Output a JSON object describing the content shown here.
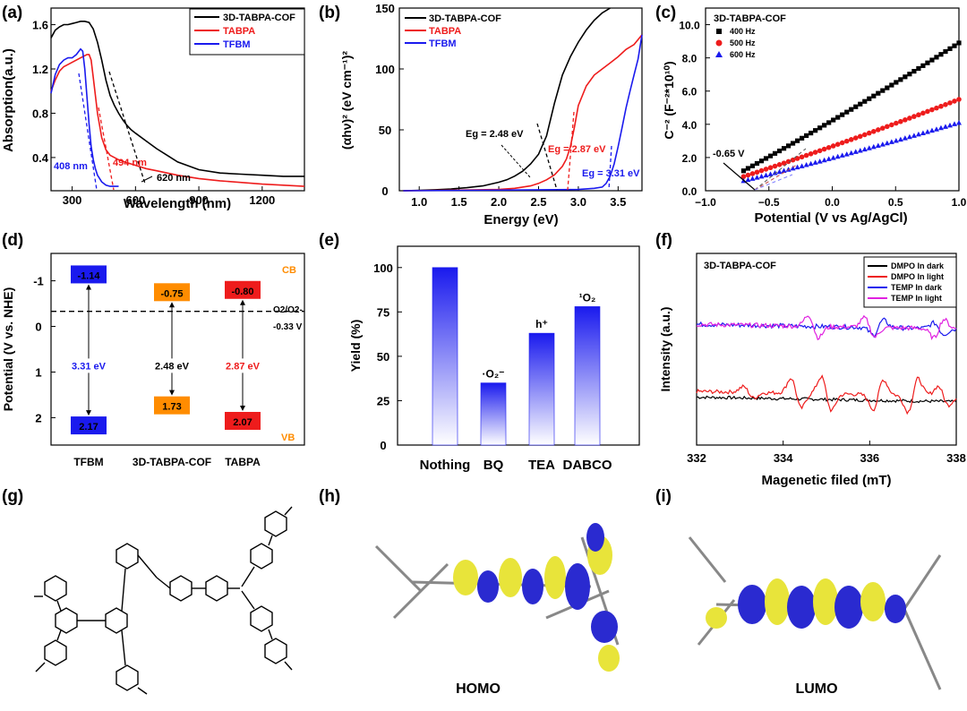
{
  "panel_labels": {
    "a": "(a)",
    "b": "(b)",
    "c": "(c)",
    "d": "(d)",
    "e": "(e)",
    "f": "(f)",
    "g": "(g)",
    "h": "(h)",
    "i": "(i)"
  },
  "colors": {
    "black": "#000000",
    "red": "#ee1c1c",
    "blue": "#1a1aee",
    "magenta": "#e020e0",
    "orange": "#ff8c00",
    "orbital_yellow": "#e8e43a",
    "orbital_blue": "#2a2ad0"
  },
  "chart_data": [
    {
      "id": "a",
      "type": "line",
      "xlabel": "Wavelength (nm)",
      "ylabel": "Absorption(a.u.)",
      "xlim": [
        200,
        1400
      ],
      "ylim": [
        0.1,
        1.75
      ],
      "xticks": [
        "300",
        "600",
        "900",
        "1200"
      ],
      "yticks": [
        "0.4",
        "0.8",
        "1.2",
        "1.6"
      ],
      "legend": "top-right",
      "series": [
        {
          "name": "3D-TABPA-COF",
          "color": "#000000",
          "x": [
            200,
            220,
            240,
            260,
            280,
            300,
            320,
            340,
            360,
            380,
            400,
            420,
            440,
            460,
            480,
            500,
            520,
            540,
            560,
            580,
            600,
            650,
            700,
            750,
            800,
            900,
            1000,
            1100,
            1200,
            1300,
            1400
          ],
          "y": [
            1.48,
            1.55,
            1.58,
            1.6,
            1.6,
            1.61,
            1.62,
            1.63,
            1.63,
            1.62,
            1.56,
            1.44,
            1.28,
            1.1,
            0.96,
            0.87,
            0.8,
            0.74,
            0.69,
            0.65,
            0.62,
            0.55,
            0.48,
            0.42,
            0.36,
            0.29,
            0.26,
            0.25,
            0.24,
            0.23,
            0.23
          ]
        },
        {
          "name": "TABPA",
          "color": "#ee1c1c",
          "x": [
            200,
            220,
            240,
            260,
            280,
            300,
            320,
            340,
            360,
            370,
            380,
            390,
            400,
            420,
            440,
            460,
            480,
            500,
            520,
            550,
            600,
            650,
            700,
            800,
            900,
            1000,
            1200,
            1400
          ],
          "y": [
            1.0,
            1.1,
            1.18,
            1.22,
            1.24,
            1.26,
            1.28,
            1.3,
            1.32,
            1.33,
            1.33,
            1.28,
            1.12,
            0.8,
            0.58,
            0.47,
            0.42,
            0.4,
            0.38,
            0.36,
            0.33,
            0.3,
            0.28,
            0.24,
            0.21,
            0.19,
            0.16,
            0.14
          ]
        },
        {
          "name": "TFBM",
          "color": "#1a1aee",
          "x": [
            200,
            220,
            240,
            260,
            280,
            300,
            320,
            340,
            350,
            360,
            370,
            380,
            390,
            400,
            410,
            420,
            440,
            460,
            480,
            500,
            520
          ],
          "y": [
            0.98,
            1.15,
            1.24,
            1.28,
            1.3,
            1.3,
            1.33,
            1.38,
            1.36,
            1.2,
            0.95,
            0.7,
            0.5,
            0.38,
            0.3,
            0.24,
            0.18,
            0.15,
            0.14,
            0.14,
            0.14
          ]
        }
      ],
      "annotations": [
        {
          "text": "408 nm",
          "x": 408,
          "color": "#1a1aee"
        },
        {
          "text": "494 nm",
          "x": 494,
          "color": "#ee1c1c"
        },
        {
          "text": "620 nm",
          "x": 620,
          "color": "#000000"
        }
      ]
    },
    {
      "id": "b",
      "type": "line",
      "xlabel": "Energy (eV)",
      "ylabel": "(αhν)² (eV cm⁻¹)²",
      "xlim": [
        0.75,
        3.8
      ],
      "ylim": [
        0,
        150
      ],
      "xticks": [
        "1.0",
        "1.5",
        "2.0",
        "2.5",
        "3.0",
        "3.5"
      ],
      "yticks": [
        "0",
        "50",
        "100",
        "150"
      ],
      "legend": "top-left",
      "series": [
        {
          "name": "3D-TABPA-COF",
          "color": "#000000",
          "x": [
            0.8,
            1.0,
            1.2,
            1.4,
            1.6,
            1.8,
            2.0,
            2.1,
            2.2,
            2.3,
            2.4,
            2.5,
            2.6,
            2.7,
            2.8,
            2.9,
            3.0,
            3.1,
            3.2,
            3.3,
            3.4
          ],
          "y": [
            0,
            0.3,
            0.8,
            1.5,
            2.5,
            4,
            7,
            9,
            12,
            16,
            22,
            30,
            45,
            72,
            95,
            110,
            122,
            132,
            140,
            146,
            150
          ]
        },
        {
          "name": "TABPA",
          "color": "#ee1c1c",
          "x": [
            0.8,
            1.5,
            2.0,
            2.2,
            2.4,
            2.5,
            2.6,
            2.7,
            2.8,
            2.85,
            2.9,
            2.95,
            3.0,
            3.1,
            3.2,
            3.3,
            3.4,
            3.5,
            3.6,
            3.7,
            3.8
          ],
          "y": [
            0,
            0.5,
            1,
            2,
            4,
            6,
            9,
            13,
            20,
            26,
            36,
            52,
            70,
            86,
            95,
            100,
            105,
            110,
            116,
            120,
            128
          ]
        },
        {
          "name": "TFBM",
          "color": "#1a1aee",
          "x": [
            0.8,
            2.0,
            3.0,
            3.2,
            3.3,
            3.35,
            3.4,
            3.45,
            3.5,
            3.55,
            3.6,
            3.65,
            3.7,
            3.75,
            3.8
          ],
          "y": [
            0,
            0.5,
            1,
            2,
            3,
            6,
            12,
            22,
            36,
            52,
            68,
            82,
            95,
            108,
            128
          ]
        }
      ],
      "annotations": [
        {
          "text": "Eg = 2.48 eV",
          "color": "#000000"
        },
        {
          "text": "Eg = 2.87 eV",
          "color": "#ee1c1c"
        },
        {
          "text": "Eg = 3.31 eV",
          "color": "#1a1aee"
        }
      ]
    },
    {
      "id": "c",
      "type": "scatter",
      "title": "3D-TABPA-COF",
      "xlabel": "Potential (V vs Ag/AgCl)",
      "ylabel": "C⁻² (F⁻²*10¹⁰)",
      "xlim": [
        -1.0,
        1.0
      ],
      "ylim": [
        0,
        11
      ],
      "xticks": [
        "−1.0",
        "−0.5",
        "0.0",
        "0.5",
        "1.0"
      ],
      "yticks": [
        "0.0",
        "2.0",
        "4.0",
        "6.0",
        "8.0",
        "10.0"
      ],
      "legend": "top-left",
      "series": [
        {
          "name": "400 Hz",
          "color": "#000000",
          "marker": "square",
          "start": [
            -0.7,
            1.2
          ],
          "end": [
            1.0,
            8.9
          ]
        },
        {
          "name": "500 Hz",
          "color": "#ee1c1c",
          "marker": "circle",
          "start": [
            -0.7,
            0.85
          ],
          "end": [
            1.0,
            5.5
          ]
        },
        {
          "name": "600 Hz",
          "color": "#1a1aee",
          "marker": "triangle",
          "start": [
            -0.7,
            0.6
          ],
          "end": [
            1.0,
            4.1
          ]
        }
      ],
      "annotation": "-0.65 V"
    },
    {
      "id": "d",
      "type": "diagram",
      "ylabel": "Potential (V vs. NHE)",
      "yticks": [
        "-1",
        "0",
        "1",
        "2"
      ],
      "ylim": [
        -1.6,
        2.6
      ],
      "categories": [
        "TFBM",
        "3D-TABPA-COF",
        "TABPA"
      ],
      "cb": [
        -1.14,
        -0.75,
        -0.8
      ],
      "vb": [
        2.17,
        1.73,
        2.07
      ],
      "cb_labels": [
        "-1.14",
        "-0.75",
        "-0.80"
      ],
      "vb_labels": [
        "2.17",
        "1.73",
        "2.07"
      ],
      "gaps": [
        "3.31 eV",
        "2.48 eV",
        "2.87 eV"
      ],
      "colors": [
        "#1a1aee",
        "#ff8c00",
        "#ee1c1c"
      ],
      "cb_text": "CB",
      "vb_text": "VB",
      "redox_label": "O2/O2-",
      "redox_value": "-0.33 V",
      "redox_level": -0.33
    },
    {
      "id": "e",
      "type": "bar",
      "ylabel": "Yield (%)",
      "categories": [
        "Nothing",
        "BQ",
        "TEA",
        "DABCO"
      ],
      "values": [
        100,
        35,
        63,
        78
      ],
      "bar_labels": [
        "",
        "·O₂⁻",
        "h⁺",
        "¹O₂"
      ],
      "ylim": [
        0,
        112
      ],
      "yticks": [
        "0",
        "25",
        "50",
        "75",
        "100"
      ]
    },
    {
      "id": "f",
      "type": "line",
      "title": "3D-TABPA-COF",
      "xlabel": "Magenetic filed (mT)",
      "ylabel": "Intensity (a.u.)",
      "xlim": [
        332,
        338
      ],
      "xticks": [
        "332",
        "334",
        "336",
        "338"
      ],
      "legend": "top-right",
      "series": [
        {
          "name": "DMPO In dark",
          "color": "#000000",
          "offset": 0.25,
          "noise": 0.008,
          "peaks": []
        },
        {
          "name": "DMPO In light",
          "color": "#ee1c1c",
          "offset": 0.28,
          "noise": 0.01,
          "peaks": [
            [
              334.3,
              0.08
            ],
            [
              335.0,
              0.09
            ],
            [
              336.2,
              -0.08
            ],
            [
              337.0,
              -0.09
            ],
            [
              333.2,
              0.03
            ],
            [
              337.7,
              0.05
            ]
          ]
        },
        {
          "name": "TEMP In dark",
          "color": "#1a1aee",
          "offset": 0.63,
          "noise": 0.012,
          "peaks": [
            [
              336.2,
              -0.04
            ],
            [
              337.6,
              0.03
            ]
          ]
        },
        {
          "name": "TEMP In light",
          "color": "#e020e0",
          "offset": 0.63,
          "noise": 0.012,
          "peaks": [
            [
              334.7,
              0.06
            ],
            [
              336.0,
              0.05
            ],
            [
              337.6,
              -0.05
            ]
          ]
        }
      ]
    }
  ],
  "orbitals": {
    "homo_label": "HOMO",
    "lumo_label": "LUMO"
  }
}
